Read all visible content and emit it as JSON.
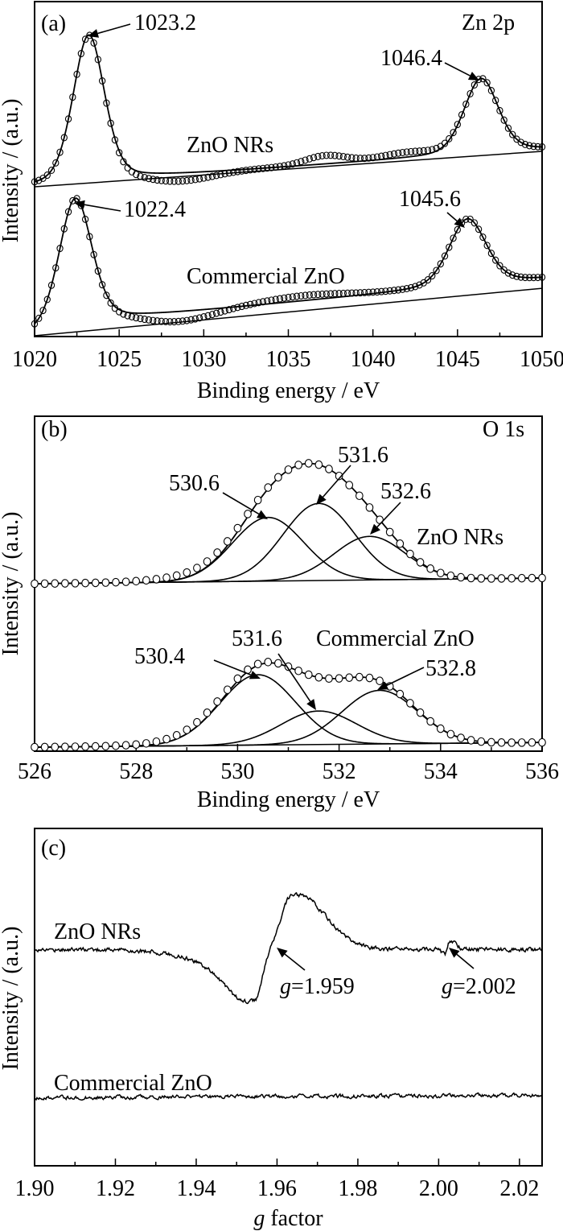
{
  "chart_data": [
    {
      "type": "line",
      "panel": "(a)",
      "title": "Zn 2p",
      "xlabel": "Binding energy / eV",
      "ylabel": "Intensity / (a.u.)",
      "xlim": [
        1020,
        1050
      ],
      "ylim": [
        0,
        100
      ],
      "xticks_major": [
        1020,
        1025,
        1030,
        1035,
        1040,
        1045,
        1050
      ],
      "xtick_major_step": 5,
      "xtick_minor_step": 2.5,
      "grid": false,
      "annotations": [
        {
          "text": "(a)",
          "role": "panel-label"
        },
        {
          "text": "Zn 2p",
          "role": "core-level"
        },
        {
          "text": "1023.2",
          "role": "peak-label"
        },
        {
          "text": "1046.4",
          "role": "peak-label"
        },
        {
          "text": "ZnO NRs",
          "role": "series-label"
        },
        {
          "text": "1022.4",
          "role": "peak-label"
        },
        {
          "text": "1045.6",
          "role": "peak-label"
        },
        {
          "text": "Commercial ZnO",
          "role": "series-label"
        }
      ],
      "series": [
        {
          "name": "ZnO NRs",
          "baseline": [
            44.7,
            55.3
          ],
          "peak_shape_lorentz_fraction": 0.3,
          "peaks": [
            {
              "center": 1023.2,
              "amp": 43.9,
              "fwhm": 2.2
            },
            {
              "center": 1046.4,
              "amp": 22.4,
              "fwhm": 2.4
            }
          ],
          "steps": [
            {
              "center": 1023.2,
              "amp": 0.6,
              "width": 1.2
            }
          ],
          "data_deviation": [
            {
              "center": 1028.5,
              "amp": -2.5,
              "width": 2.0
            },
            {
              "center": 1037.2,
              "amp": 2.5,
              "width": 1.2
            },
            {
              "center": 1042.0,
              "amp": 1.5,
              "width": 1.5
            }
          ],
          "point_step": 0.25
        },
        {
          "name": "Commercial ZnO",
          "baseline": [
            0.24,
            14.4
          ],
          "peak_shape_lorentz_fraction": 0.3,
          "peaks": [
            {
              "center": 1022.4,
              "amp": 38.5,
              "fwhm": 2.3
            },
            {
              "center": 1045.6,
              "amp": 20.0,
              "fwhm": 2.6
            }
          ],
          "steps": [
            {
              "center": 1022.4,
              "amp": 2.8,
              "width": 1.3
            }
          ],
          "data_deviation": [
            {
              "center": 1028.5,
              "amp": -3.0,
              "width": 2.0
            },
            {
              "center": 1036.0,
              "amp": 1.5,
              "width": 2.5
            }
          ],
          "point_step": 0.25
        }
      ]
    },
    {
      "type": "line",
      "panel": "(b)",
      "title": "O 1s",
      "xlabel": "Binding energy / eV",
      "ylabel": "Intensity / (a.u.)",
      "xlim": [
        526,
        536
      ],
      "ylim": [
        0,
        100
      ],
      "xticks_major": [
        526,
        528,
        530,
        532,
        534,
        536
      ],
      "xtick_major_step": 2,
      "xtick_minor_step": 1,
      "grid": false,
      "annotations": [
        {
          "text": "(b)",
          "role": "panel-label"
        },
        {
          "text": "O 1s",
          "role": "core-level"
        },
        {
          "text": "530.6",
          "role": "peak-label"
        },
        {
          "text": "531.6",
          "role": "peak-label"
        },
        {
          "text": "532.6",
          "role": "peak-label"
        },
        {
          "text": "ZnO NRs",
          "role": "series-label"
        },
        {
          "text": "530.4",
          "role": "peak-label"
        },
        {
          "text": "531.6",
          "role": "peak-label"
        },
        {
          "text": "Commercial ZnO",
          "role": "series-label"
        },
        {
          "text": "532.8",
          "role": "peak-label"
        }
      ],
      "series": [
        {
          "name": "ZnO NRs",
          "baseline": [
            50.0,
            51.7
          ],
          "components": [
            {
              "center": 530.6,
              "amp": 19,
              "fwhm": 1.65
            },
            {
              "center": 531.6,
              "amp": 23,
              "fwhm": 1.65
            },
            {
              "center": 532.6,
              "amp": 13,
              "fwhm": 1.65
            }
          ],
          "data_deviation": [
            {
              "center": 529.3,
              "amp": 1.5,
              "width": 0.8
            }
          ],
          "point_step": 0.2
        },
        {
          "name": "Commercial ZnO",
          "baseline": [
            1.2,
            2.6
          ],
          "components": [
            {
              "center": 530.4,
              "amp": 21,
              "fwhm": 1.75
            },
            {
              "center": 531.6,
              "amp": 10,
              "fwhm": 1.75
            },
            {
              "center": 532.8,
              "amp": 16,
              "fwhm": 1.75
            }
          ],
          "data_deviation": [
            {
              "center": 529.2,
              "amp": 1.2,
              "width": 0.8
            }
          ],
          "point_step": 0.2
        }
      ]
    },
    {
      "type": "line",
      "panel": "(c)",
      "title": "",
      "xlabel": "g factor",
      "ylabel": "Intensity / (a.u.)",
      "xlim": [
        1.9,
        2.0256
      ],
      "ylim": [
        0,
        100
      ],
      "xticks_major": [
        1.9,
        1.92,
        1.94,
        1.96,
        1.98,
        2.0,
        2.02
      ],
      "xtick_major_step": 0.02,
      "xtick_minor_step": 0.01,
      "grid": false,
      "annotations": [
        {
          "text": "(c)",
          "role": "panel-label"
        },
        {
          "text": "ZnO NRs",
          "role": "series-label"
        },
        {
          "text": "g=1.959",
          "role": "peak-label"
        },
        {
          "text": "g=2.002",
          "role": "peak-label"
        },
        {
          "text": "Commercial ZnO",
          "role": "series-label"
        }
      ],
      "series": [
        {
          "name": "ZnO NRs",
          "baseline": [
            64.1,
            64.1
          ],
          "features": [
            {
              "center": 1.9545,
              "amp": -14.0,
              "sigma_left": 0.006,
              "sigma_right": 0.0018
            },
            {
              "center": 1.948,
              "amp": -4.0,
              "sigma_left": 0.01,
              "sigma_right": 0.004
            },
            {
              "center": 1.9635,
              "amp": 15.0,
              "sigma_left": 0.0025,
              "sigma_right": 0.007
            },
            {
              "center": 1.97,
              "amp": 3.0,
              "sigma_left": 0.004,
              "sigma_right": 0.006
            },
            {
              "center": 2.0015,
              "amp": -1.5,
              "sigma_left": 0.0008,
              "sigma_right": 0.0005
            },
            {
              "center": 2.0028,
              "amp": 2.5,
              "sigma_left": 0.0005,
              "sigma_right": 0.0015
            }
          ],
          "noise_amplitude": 0.7,
          "point_step": 0.0002
        },
        {
          "name": "Commercial ZnO",
          "baseline": [
            20.2,
            20.9
          ],
          "features": [],
          "noise_amplitude": 0.6,
          "point_step": 0.0002
        }
      ]
    }
  ]
}
